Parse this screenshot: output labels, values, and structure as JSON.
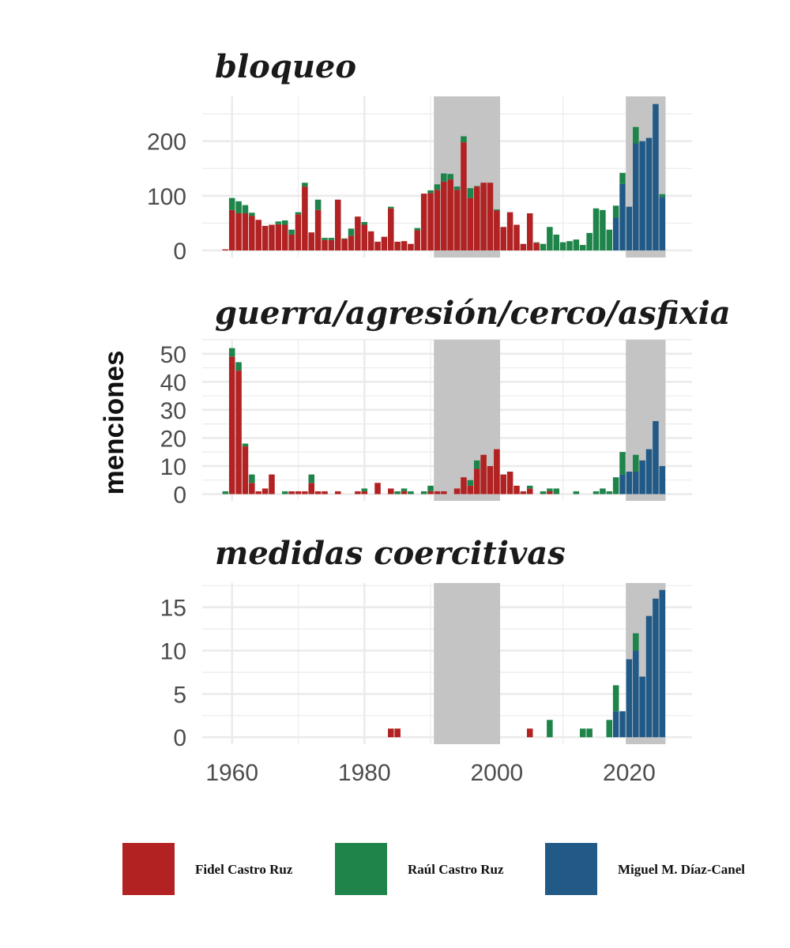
{
  "colors": {
    "fidel": "#b22222",
    "raul": "#1e8449",
    "diaz": "#225a87",
    "shade": "#c4c4c4",
    "grid": "#ebebeb"
  },
  "legend": [
    {
      "key": "fidel",
      "label": "Fidel Castro Ruz"
    },
    {
      "key": "raul",
      "label": "Raúl Castro Ruz"
    },
    {
      "key": "diaz",
      "label": "Miguel M. Díaz-Canel"
    }
  ],
  "chart_data": {
    "type": "bar",
    "stacked": true,
    "ylabel": "menciones",
    "x_ticks": [
      1960,
      1980,
      2000,
      2020
    ],
    "xlim": [
      1955.5,
      2029.5
    ],
    "shaded_periods": [
      [
        1990.5,
        2000.5
      ],
      [
        2019.5,
        2025.5
      ]
    ],
    "series_names": [
      "Fidel Castro Ruz",
      "Raúl Castro Ruz",
      "Miguel M. Díaz-Canel"
    ],
    "panels": [
      {
        "title": "bloqueo",
        "ylim": [
          -13,
          282
        ],
        "y_ticks": [
          0,
          100,
          200
        ],
        "fidel": {
          "1959": 2,
          "1960": 74,
          "1961": 68,
          "1962": 68,
          "1963": 63,
          "1964": 56,
          "1965": 45,
          "1966": 47,
          "1967": 48,
          "1968": 47,
          "1969": 29,
          "1970": 66,
          "1971": 117,
          "1972": 33,
          "1973": 74,
          "1974": 19,
          "1975": 19,
          "1976": 93,
          "1977": 21,
          "1978": 27,
          "1979": 62,
          "1980": 47,
          "1981": 35,
          "1982": 16,
          "1983": 25,
          "1984": 77,
          "1985": 16,
          "1986": 17,
          "1987": 12,
          "1988": 37,
          "1989": 104,
          "1990": 105,
          "1991": 111,
          "1992": 126,
          "1993": 130,
          "1994": 111,
          "1995": 198,
          "1996": 96,
          "1997": 117,
          "1998": 124,
          "1999": 124,
          "2000": 73,
          "2001": 43,
          "2002": 70,
          "2003": 47,
          "2004": 12,
          "2005": 68,
          "2006": 14
        },
        "raul": {
          "1960": 22,
          "1961": 22,
          "1962": 15,
          "1963": 6,
          "1967": 5,
          "1968": 8,
          "1969": 9,
          "1970": 4,
          "1971": 7,
          "1973": 19,
          "1974": 4,
          "1975": 4,
          "1977": 1,
          "1978": 13,
          "1980": 5,
          "1984": 3,
          "1988": 4,
          "1990": 5,
          "1991": 10,
          "1992": 15,
          "1993": 10,
          "1994": 6,
          "1995": 11,
          "1996": 18,
          "1997": 1,
          "2000": 2,
          "2006": 1,
          "2007": 12,
          "2008": 43,
          "2009": 29,
          "2010": 15,
          "2011": 17,
          "2012": 20,
          "2013": 10,
          "2014": 32,
          "2015": 77,
          "2016": 74,
          "2017": 38,
          "2018": 22,
          "2019": 20,
          "2021": 30,
          "2025": 5
        },
        "diaz": {
          "2018": 60,
          "2019": 122,
          "2020": 80,
          "2021": 196,
          "2022": 200,
          "2023": 206,
          "2024": 268,
          "2025": 98
        }
      },
      {
        "title": "guerra/agresión/cerco/asfixia",
        "ylim": [
          -2.4,
          55
        ],
        "y_ticks": [
          0,
          10,
          20,
          30,
          40,
          50
        ],
        "fidel": {
          "1960": 49,
          "1961": 44,
          "1962": 17,
          "1963": 4,
          "1964": 1,
          "1965": 2,
          "1966": 7,
          "1969": 1,
          "1970": 1,
          "1971": 1,
          "1972": 4,
          "1973": 1,
          "1974": 1,
          "1976": 1,
          "1979": 1,
          "1980": 1,
          "1982": 4,
          "1984": 2,
          "1986": 1,
          "1990": 1,
          "1991": 1,
          "1992": 1,
          "1994": 2,
          "1995": 6,
          "1996": 3,
          "1997": 9,
          "1998": 14,
          "1999": 10,
          "2000": 16,
          "2001": 7,
          "2002": 8,
          "2003": 3,
          "2004": 1,
          "2005": 2,
          "2008": 1
        },
        "raul": {
          "1959": 1,
          "1960": 3,
          "1961": 3,
          "1962": 1,
          "1963": 3,
          "1968": 1,
          "1972": 3,
          "1980": 1,
          "1985": 1,
          "1986": 1,
          "1987": 1,
          "1989": 1,
          "1990": 2,
          "1996": 2,
          "1997": 3,
          "2005": 1,
          "2007": 1,
          "2008": 1,
          "2009": 2,
          "2012": 1,
          "2015": 1,
          "2016": 2,
          "2017": 1,
          "2018": 6,
          "2019": 8,
          "2021": 6
        },
        "diaz": {
          "2019": 7,
          "2020": 8,
          "2021": 8,
          "2022": 12,
          "2023": 16,
          "2024": 26,
          "2025": 10
        }
      },
      {
        "title": "medidas coercitivas",
        "ylim": [
          -0.8,
          17.8
        ],
        "y_ticks": [
          0,
          5,
          10,
          15
        ],
        "fidel": {
          "1984": 1,
          "1985": 1,
          "2005": 1
        },
        "raul": {
          "2008": 2,
          "2013": 1,
          "2014": 1,
          "2017": 2,
          "2018": 3,
          "2021": 2
        },
        "diaz": {
          "2018": 3,
          "2019": 3,
          "2020": 9,
          "2021": 10,
          "2022": 7,
          "2023": 14,
          "2024": 16,
          "2025": 17
        }
      }
    ]
  }
}
